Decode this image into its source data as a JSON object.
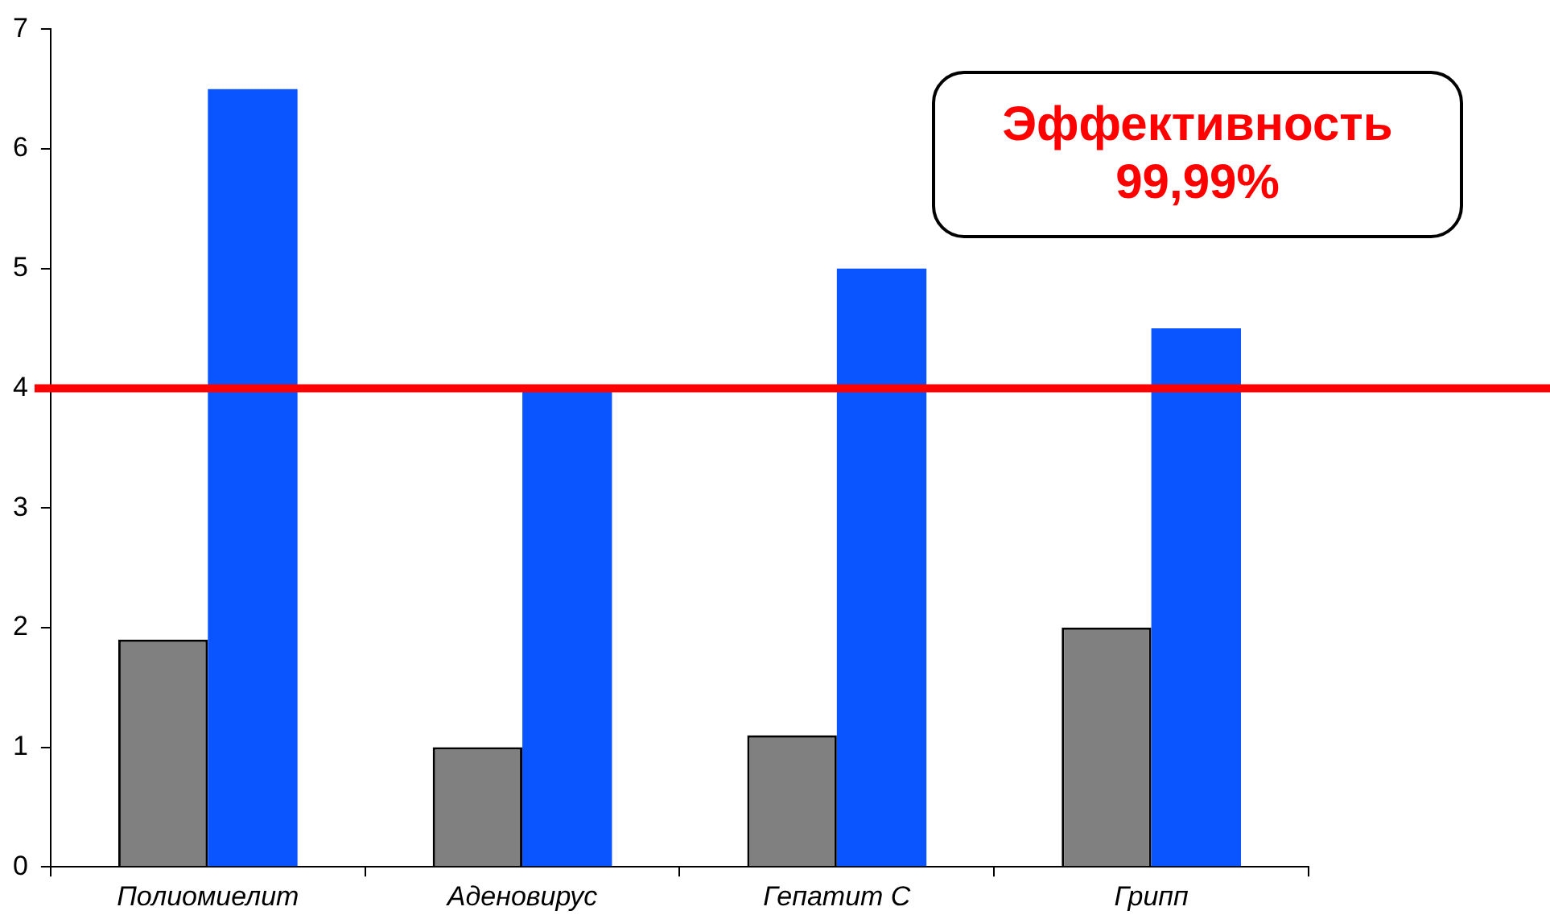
{
  "chart_data": {
    "type": "bar",
    "categories": [
      "Полиомиелит",
      "Аденовирус",
      "Гепатит С",
      "Грипп"
    ],
    "series": [
      {
        "color": "#808080",
        "values": [
          1.9,
          1,
          1.1,
          2
        ]
      },
      {
        "color": "#0a55ff",
        "values": [
          6.5,
          4,
          5,
          4.5
        ]
      }
    ],
    "ylim": [
      0,
      7
    ],
    "yticks": [
      0,
      1,
      2,
      3,
      4,
      5,
      6,
      7
    ],
    "grid": false,
    "legend": false,
    "ref_lines": [
      {
        "axis": "y",
        "value": 4,
        "color": "#ff0000"
      }
    ],
    "annotations": [
      "Эффективность\n99,99%"
    ]
  }
}
